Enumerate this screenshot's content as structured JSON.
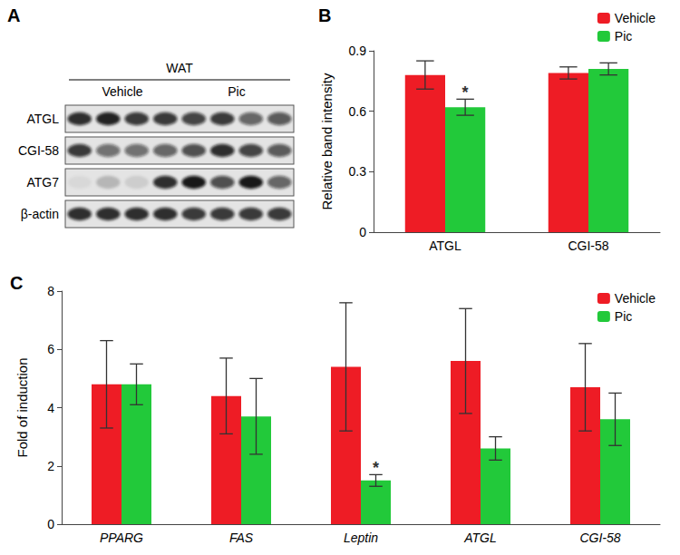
{
  "blot": {
    "panel_label": "A",
    "tissue": "WAT",
    "groups": [
      {
        "label": "Vehicle",
        "lanes": 4
      },
      {
        "label": "Pic",
        "lanes": 4
      }
    ],
    "rows": [
      {
        "label": "ATGL",
        "intensity": [
          0.85,
          0.9,
          0.8,
          0.8,
          0.75,
          0.8,
          0.6,
          0.65
        ]
      },
      {
        "label": "CGI-58",
        "intensity": [
          0.8,
          0.55,
          0.55,
          0.6,
          0.7,
          0.85,
          0.75,
          0.65
        ]
      },
      {
        "label": "ATG7",
        "intensity": [
          0.05,
          0.2,
          0.1,
          0.85,
          0.95,
          0.7,
          0.95,
          0.6
        ]
      },
      {
        "label": "β-actin",
        "intensity": [
          0.85,
          0.85,
          0.85,
          0.85,
          0.8,
          0.8,
          0.8,
          0.8
        ]
      }
    ]
  },
  "chart_data": [
    {
      "panel_label": "B",
      "type": "bar",
      "y_label": "Relative band intensity",
      "categories": [
        "ATGL",
        "CGI-58"
      ],
      "series": [
        {
          "name": "Vehicle",
          "color": "#ee1c25",
          "values": [
            0.78,
            0.79
          ],
          "errors": [
            0.07,
            0.03
          ],
          "annotations": [
            null,
            null
          ]
        },
        {
          "name": "Pic",
          "color": "#22c93a",
          "values": [
            0.62,
            0.81
          ],
          "errors": [
            0.04,
            0.03
          ],
          "annotations": [
            "*",
            null
          ]
        }
      ],
      "ylim": [
        0,
        0.9
      ],
      "yticks": [
        0,
        0.3,
        0.6,
        0.9
      ],
      "grid": false,
      "legend": "top-right"
    },
    {
      "panel_label": "C",
      "type": "bar",
      "y_label": "Fold of induction",
      "categories": [
        "PPARG",
        "FAS",
        "Leptin",
        "ATGL",
        "CGI-58"
      ],
      "series": [
        {
          "name": "Vehicle",
          "color": "#ee1c25",
          "values": [
            4.8,
            4.4,
            5.4,
            5.6,
            4.7
          ],
          "errors": [
            1.5,
            1.3,
            2.2,
            1.8,
            1.5
          ],
          "annotations": [
            null,
            null,
            null,
            null,
            null
          ]
        },
        {
          "name": "Pic",
          "color": "#22c93a",
          "values": [
            4.8,
            3.7,
            1.5,
            2.6,
            3.6
          ],
          "errors": [
            0.7,
            1.3,
            0.2,
            0.4,
            0.9
          ],
          "annotations": [
            null,
            null,
            "*",
            null,
            null
          ]
        }
      ],
      "ylim": [
        0,
        8
      ],
      "yticks": [
        0,
        2,
        4,
        6,
        8
      ],
      "grid": false,
      "legend": "top-right"
    }
  ]
}
